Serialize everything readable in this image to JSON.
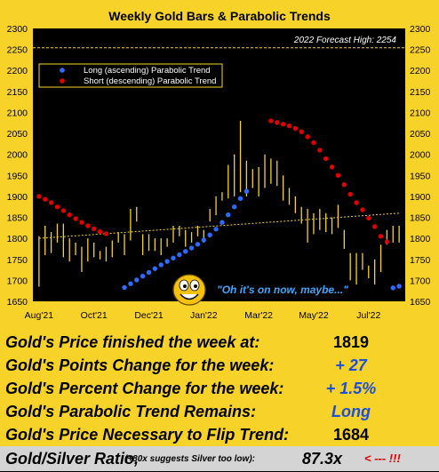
{
  "chart_data": {
    "type": "bar",
    "title": "Weekly Gold Bars & Parabolic Trends",
    "ylim": [
      1650,
      2300
    ],
    "y_ticks": [
      1650,
      1700,
      1750,
      1800,
      1850,
      1900,
      1950,
      2000,
      2050,
      2100,
      2150,
      2200,
      2250,
      2300
    ],
    "x_labels": [
      "Aug'21",
      "Oct'21",
      "Dec'21",
      "Jan'22",
      "Mar'22",
      "May'22",
      "Jul'22"
    ],
    "x_label_weeks": [
      0,
      9,
      18,
      27,
      36,
      45,
      54
    ],
    "weeks": 60,
    "forecast": {
      "label": "2022 Forecast High: 2254",
      "value": 2254
    },
    "legend": {
      "placement": "top-left",
      "entries": [
        {
          "label": "Long (ascending) Parabolic Trend",
          "color": "#2f6bff"
        },
        {
          "label": "Short (descending) Parabolic Trend",
          "color": "#e00000"
        }
      ]
    },
    "bars": [
      [
        1685,
        1805
      ],
      [
        1760,
        1830
      ],
      [
        1765,
        1815
      ],
      [
        1790,
        1835
      ],
      [
        1755,
        1835
      ],
      [
        1745,
        1800
      ],
      [
        1760,
        1790
      ],
      [
        1720,
        1780
      ],
      [
        1745,
        1800
      ],
      [
        1755,
        1790
      ],
      [
        1750,
        1770
      ],
      [
        1745,
        1780
      ],
      [
        1755,
        1795
      ],
      [
        1790,
        1815
      ],
      [
        1760,
        1810
      ],
      [
        1795,
        1870
      ],
      [
        1840,
        1875
      ],
      [
        1760,
        1810
      ],
      [
        1770,
        1810
      ],
      [
        1770,
        1800
      ],
      [
        1760,
        1800
      ],
      [
        1780,
        1800
      ],
      [
        1790,
        1830
      ],
      [
        1805,
        1830
      ],
      [
        1780,
        1820
      ],
      [
        1790,
        1815
      ],
      [
        1805,
        1830
      ],
      [
        1790,
        1820
      ],
      [
        1840,
        1870
      ],
      [
        1855,
        1900
      ],
      [
        1890,
        1910
      ],
      [
        1895,
        1975
      ],
      [
        1900,
        2000
      ],
      [
        1910,
        2080
      ],
      [
        1900,
        1985
      ],
      [
        1920,
        1965
      ],
      [
        1900,
        1970
      ],
      [
        1920,
        2000
      ],
      [
        1930,
        1990
      ],
      [
        1925,
        1985
      ],
      [
        1890,
        1950
      ],
      [
        1880,
        1920
      ],
      [
        1860,
        1900
      ],
      [
        1835,
        1875
      ],
      [
        1790,
        1870
      ],
      [
        1810,
        1860
      ],
      [
        1820,
        1870
      ],
      [
        1815,
        1860
      ],
      [
        1810,
        1850
      ],
      [
        1825,
        1880
      ],
      [
        1775,
        1820
      ],
      [
        1700,
        1765
      ],
      [
        1690,
        1765
      ],
      [
        1725,
        1765
      ],
      [
        1705,
        1735
      ],
      [
        1690,
        1750
      ],
      [
        1720,
        1785
      ],
      [
        1785,
        1820
      ],
      [
        1790,
        1830
      ],
      [
        1790,
        1830
      ]
    ],
    "trend_line": [
      [
        0,
        1800
      ],
      [
        59,
        1860
      ]
    ],
    "short_trend": [
      [
        0,
        1900
      ],
      [
        1,
        1893
      ],
      [
        2,
        1885
      ],
      [
        3,
        1875
      ],
      [
        4,
        1866
      ],
      [
        5,
        1856
      ],
      [
        6,
        1847
      ],
      [
        7,
        1838
      ],
      [
        8,
        1830
      ],
      [
        9,
        1823
      ],
      [
        10,
        1816
      ],
      [
        11,
        1811
      ],
      [
        38,
        2080
      ],
      [
        39,
        2076
      ],
      [
        40,
        2072
      ],
      [
        41,
        2068
      ],
      [
        42,
        2062
      ],
      [
        43,
        2054
      ],
      [
        44,
        2042
      ],
      [
        45,
        2028
      ],
      [
        46,
        2010
      ],
      [
        47,
        1990
      ],
      [
        48,
        1970
      ],
      [
        49,
        1950
      ],
      [
        50,
        1928
      ],
      [
        51,
        1905
      ],
      [
        52,
        1885
      ],
      [
        53,
        1868
      ],
      [
        54,
        1848
      ],
      [
        55,
        1828
      ],
      [
        56,
        1805
      ],
      [
        57,
        1792
      ]
    ],
    "long_trend": [
      [
        14,
        1683
      ],
      [
        15,
        1692
      ],
      [
        16,
        1701
      ],
      [
        17,
        1710
      ],
      [
        18,
        1719
      ],
      [
        19,
        1728
      ],
      [
        20,
        1737
      ],
      [
        21,
        1745
      ],
      [
        22,
        1753
      ],
      [
        23,
        1761
      ],
      [
        24,
        1769
      ],
      [
        25,
        1777
      ],
      [
        26,
        1786
      ],
      [
        27,
        1796
      ],
      [
        28,
        1808
      ],
      [
        29,
        1822
      ],
      [
        30,
        1838
      ],
      [
        31,
        1856
      ],
      [
        32,
        1875
      ],
      [
        33,
        1895
      ],
      [
        34,
        1912
      ],
      [
        58,
        1682
      ],
      [
        59,
        1686
      ]
    ]
  },
  "annotation": {
    "quote": "\"Oh it's on now, maybe...\"",
    "icon": "smiley-face-icon"
  },
  "stats": {
    "rows": [
      {
        "label": "Gold's Price finished the week at:",
        "value": "1819"
      },
      {
        "label": "Gold's Points Change for the week:",
        "value": "+ 27"
      },
      {
        "label": "Gold's Percent Change for the week:",
        "value": "+ 1.5%"
      },
      {
        "label": "Gold's Parabolic Trend Remains:",
        "value": "Long"
      },
      {
        "label": "Gold's Price Necessary to Flip Trend:",
        "value": "1684"
      }
    ],
    "ratio": {
      "label": "Gold/Silver Ratio,",
      "note": "(+80x suggests Silver too low):",
      "value": "87.3x",
      "arrow": "< --- !!!"
    }
  }
}
